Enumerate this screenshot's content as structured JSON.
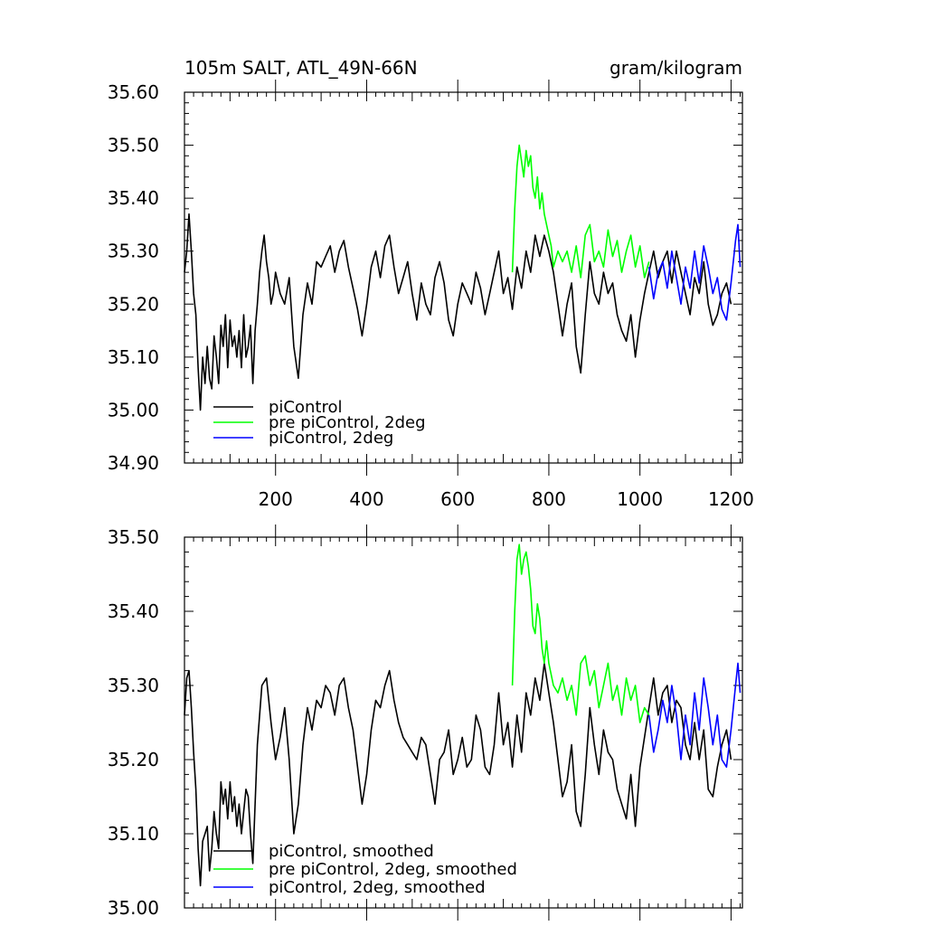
{
  "chart_data": [
    {
      "type": "line",
      "title": "105m SALT, ATL_49N-66N",
      "units": "gram/kilogram",
      "xlim": [
        0,
        1225
      ],
      "ylim": [
        34.9,
        35.6
      ],
      "yticks": [
        "35.60",
        "35.50",
        "35.40",
        "35.30",
        "35.20",
        "35.10",
        "35.00",
        "34.90"
      ],
      "xticks": [
        "200",
        "400",
        "600",
        "800",
        "1000",
        "1200"
      ],
      "legend_position": "bottom-left",
      "series": [
        {
          "name": "piControl",
          "color": "#000000",
          "x": [
            0,
            5,
            10,
            15,
            20,
            25,
            30,
            35,
            40,
            45,
            50,
            55,
            60,
            65,
            70,
            75,
            80,
            85,
            90,
            95,
            100,
            105,
            110,
            115,
            120,
            125,
            130,
            135,
            140,
            145,
            150,
            155,
            160,
            165,
            170,
            175,
            180,
            185,
            190,
            195,
            200,
            210,
            220,
            230,
            240,
            250,
            260,
            270,
            280,
            290,
            300,
            310,
            320,
            330,
            340,
            350,
            360,
            370,
            380,
            390,
            400,
            410,
            420,
            430,
            440,
            450,
            460,
            470,
            480,
            490,
            500,
            510,
            520,
            530,
            540,
            550,
            560,
            570,
            580,
            590,
            600,
            610,
            620,
            630,
            640,
            650,
            660,
            670,
            680,
            690,
            700,
            710,
            720,
            730,
            740,
            750,
            760,
            770,
            780,
            790,
            800,
            810,
            820,
            830,
            840,
            850,
            860,
            870,
            880,
            890,
            900,
            910,
            920,
            930,
            940,
            950,
            960,
            970,
            980,
            990,
            1000,
            1010,
            1020,
            1030,
            1040,
            1050,
            1060,
            1070,
            1080,
            1090,
            1100,
            1110,
            1120,
            1130,
            1140,
            1150,
            1160,
            1170,
            1180,
            1190,
            1200
          ],
          "y": [
            35.26,
            35.3,
            35.37,
            35.3,
            35.22,
            35.18,
            35.08,
            35.0,
            35.1,
            35.05,
            35.12,
            35.06,
            35.04,
            35.14,
            35.1,
            35.05,
            35.16,
            35.12,
            35.18,
            35.08,
            35.17,
            35.12,
            35.14,
            35.1,
            35.15,
            35.08,
            35.18,
            35.1,
            35.12,
            35.16,
            35.05,
            35.15,
            35.2,
            35.26,
            35.3,
            35.33,
            35.28,
            35.25,
            35.2,
            35.22,
            35.26,
            35.22,
            35.2,
            35.25,
            35.12,
            35.06,
            35.18,
            35.24,
            35.2,
            35.28,
            35.27,
            35.29,
            35.31,
            35.26,
            35.3,
            35.32,
            35.27,
            35.23,
            35.19,
            35.14,
            35.2,
            35.27,
            35.3,
            35.25,
            35.31,
            35.33,
            35.27,
            35.22,
            35.25,
            35.28,
            35.22,
            35.17,
            35.24,
            35.2,
            35.18,
            35.25,
            35.28,
            35.24,
            35.17,
            35.14,
            35.2,
            35.24,
            35.22,
            35.2,
            35.26,
            35.23,
            35.18,
            35.22,
            35.26,
            35.3,
            35.22,
            35.25,
            35.19,
            35.27,
            35.23,
            35.3,
            35.26,
            35.33,
            35.29,
            35.33,
            35.3,
            35.26,
            35.2,
            35.14,
            35.2,
            35.24,
            35.12,
            35.07,
            35.18,
            35.28,
            35.22,
            35.2,
            35.26,
            35.22,
            35.24,
            35.18,
            35.15,
            35.13,
            35.18,
            35.1,
            35.17,
            35.22,
            35.26,
            35.3,
            35.25,
            35.28,
            35.3,
            35.24,
            35.3,
            35.26,
            35.22,
            35.18,
            35.25,
            35.22,
            35.28,
            35.2,
            35.16,
            35.18,
            35.22,
            35.24,
            35.2
          ]
        },
        {
          "name": "pre piControl, 2deg",
          "color": "#00ff00",
          "x": [
            720,
            725,
            730,
            735,
            740,
            745,
            750,
            755,
            760,
            765,
            770,
            775,
            780,
            785,
            790,
            795,
            800,
            805,
            810,
            820,
            830,
            840,
            850,
            860,
            870,
            880,
            890,
            900,
            910,
            920,
            930,
            940,
            950,
            960,
            970,
            980,
            990,
            1000,
            1010,
            1020
          ],
          "y": [
            35.26,
            35.38,
            35.46,
            35.5,
            35.47,
            35.44,
            35.49,
            35.46,
            35.48,
            35.42,
            35.4,
            35.44,
            35.38,
            35.41,
            35.37,
            35.35,
            35.33,
            35.31,
            35.27,
            35.3,
            35.28,
            35.3,
            35.26,
            35.31,
            35.25,
            35.33,
            35.35,
            35.28,
            35.3,
            35.27,
            35.34,
            35.29,
            35.32,
            35.26,
            35.3,
            35.33,
            35.27,
            35.31,
            35.25,
            35.28
          ]
        },
        {
          "name": "piControl, 2deg",
          "color": "#0000ff",
          "x": [
            1020,
            1030,
            1040,
            1050,
            1060,
            1070,
            1080,
            1090,
            1100,
            1110,
            1120,
            1130,
            1140,
            1150,
            1160,
            1170,
            1180,
            1190,
            1200,
            1210,
            1215,
            1220
          ],
          "y": [
            35.27,
            35.21,
            35.26,
            35.28,
            35.23,
            35.3,
            35.25,
            35.2,
            35.27,
            35.23,
            35.3,
            35.24,
            35.31,
            35.27,
            35.22,
            35.25,
            35.19,
            35.17,
            35.24,
            35.32,
            35.35,
            35.27
          ]
        }
      ]
    },
    {
      "type": "line",
      "xlim": [
        0,
        1225
      ],
      "ylim": [
        35.0,
        35.5
      ],
      "yticks": [
        "35.50",
        "35.40",
        "35.30",
        "35.20",
        "35.10",
        "35.00"
      ],
      "legend_position": "bottom-left",
      "series": [
        {
          "name": "piControl, smoothed",
          "color": "#000000",
          "x": [
            0,
            5,
            10,
            15,
            20,
            25,
            30,
            35,
            40,
            45,
            50,
            55,
            60,
            65,
            70,
            75,
            80,
            85,
            90,
            95,
            100,
            105,
            110,
            115,
            120,
            125,
            130,
            135,
            140,
            145,
            150,
            155,
            160,
            170,
            180,
            190,
            200,
            210,
            220,
            230,
            240,
            250,
            260,
            270,
            280,
            290,
            300,
            310,
            320,
            330,
            340,
            350,
            360,
            370,
            380,
            390,
            400,
            410,
            420,
            430,
            440,
            450,
            460,
            470,
            480,
            490,
            500,
            510,
            520,
            530,
            540,
            550,
            560,
            570,
            580,
            590,
            600,
            610,
            620,
            630,
            640,
            650,
            660,
            670,
            680,
            690,
            700,
            710,
            720,
            730,
            740,
            750,
            760,
            770,
            780,
            790,
            800,
            810,
            820,
            830,
            840,
            850,
            860,
            870,
            880,
            890,
            900,
            910,
            920,
            930,
            940,
            950,
            960,
            970,
            980,
            990,
            1000,
            1010,
            1020,
            1030,
            1040,
            1050,
            1060,
            1070,
            1080,
            1090,
            1100,
            1110,
            1120,
            1130,
            1140,
            1150,
            1160,
            1170,
            1180,
            1190,
            1200
          ],
          "y": [
            35.26,
            35.31,
            35.32,
            35.27,
            35.21,
            35.16,
            35.08,
            35.03,
            35.09,
            35.1,
            35.11,
            35.05,
            35.08,
            35.13,
            35.1,
            35.08,
            35.17,
            35.14,
            35.16,
            35.12,
            35.17,
            35.13,
            35.15,
            35.11,
            35.14,
            35.1,
            35.13,
            35.16,
            35.15,
            35.1,
            35.06,
            35.14,
            35.22,
            35.3,
            35.31,
            35.25,
            35.2,
            35.23,
            35.27,
            35.2,
            35.1,
            35.14,
            35.22,
            35.27,
            35.24,
            35.28,
            35.27,
            35.3,
            35.29,
            35.26,
            35.3,
            35.31,
            35.27,
            35.24,
            35.19,
            35.14,
            35.18,
            35.24,
            35.28,
            35.27,
            35.3,
            35.32,
            35.28,
            35.25,
            35.23,
            35.22,
            35.21,
            35.2,
            35.23,
            35.22,
            35.18,
            35.14,
            35.2,
            35.21,
            35.24,
            35.18,
            35.2,
            35.23,
            35.19,
            35.2,
            35.26,
            35.24,
            35.19,
            35.18,
            35.22,
            35.29,
            35.22,
            35.25,
            35.19,
            35.26,
            35.21,
            35.29,
            35.26,
            35.31,
            35.28,
            35.33,
            35.29,
            35.25,
            35.2,
            35.15,
            35.17,
            35.22,
            35.13,
            35.11,
            35.18,
            35.27,
            35.22,
            35.18,
            35.24,
            35.21,
            35.2,
            35.16,
            35.14,
            35.12,
            35.18,
            35.11,
            35.19,
            35.23,
            35.27,
            35.31,
            35.26,
            35.29,
            35.3,
            35.25,
            35.28,
            35.27,
            35.22,
            35.2,
            35.25,
            35.2,
            35.24,
            35.16,
            35.15,
            35.19,
            35.22,
            35.24,
            35.2
          ]
        },
        {
          "name": "pre piControl, 2deg, smoothed",
          "color": "#00ff00",
          "x": [
            720,
            725,
            730,
            735,
            740,
            745,
            750,
            755,
            760,
            765,
            770,
            775,
            780,
            785,
            790,
            795,
            800,
            810,
            820,
            830,
            840,
            850,
            860,
            870,
            880,
            890,
            900,
            910,
            920,
            930,
            940,
            950,
            960,
            970,
            980,
            990,
            1000,
            1010,
            1020
          ],
          "y": [
            35.3,
            35.4,
            35.47,
            35.49,
            35.45,
            35.47,
            35.48,
            35.46,
            35.43,
            35.38,
            35.37,
            35.41,
            35.39,
            35.35,
            35.33,
            35.36,
            35.33,
            35.3,
            35.29,
            35.31,
            35.28,
            35.3,
            35.26,
            35.33,
            35.34,
            35.3,
            35.32,
            35.27,
            35.3,
            35.33,
            35.28,
            35.3,
            35.26,
            35.31,
            35.28,
            35.3,
            35.25,
            35.27,
            35.26
          ]
        },
        {
          "name": "piControl, 2deg, smoothed",
          "color": "#0000ff",
          "x": [
            1020,
            1030,
            1040,
            1050,
            1060,
            1070,
            1080,
            1090,
            1100,
            1110,
            1120,
            1130,
            1140,
            1150,
            1160,
            1170,
            1180,
            1190,
            1200,
            1210,
            1215,
            1220
          ],
          "y": [
            35.26,
            35.21,
            35.24,
            35.28,
            35.25,
            35.3,
            35.26,
            35.2,
            35.26,
            35.22,
            35.29,
            35.24,
            35.31,
            35.27,
            35.22,
            35.26,
            35.2,
            35.19,
            35.24,
            35.3,
            35.33,
            35.29
          ]
        }
      ]
    }
  ]
}
